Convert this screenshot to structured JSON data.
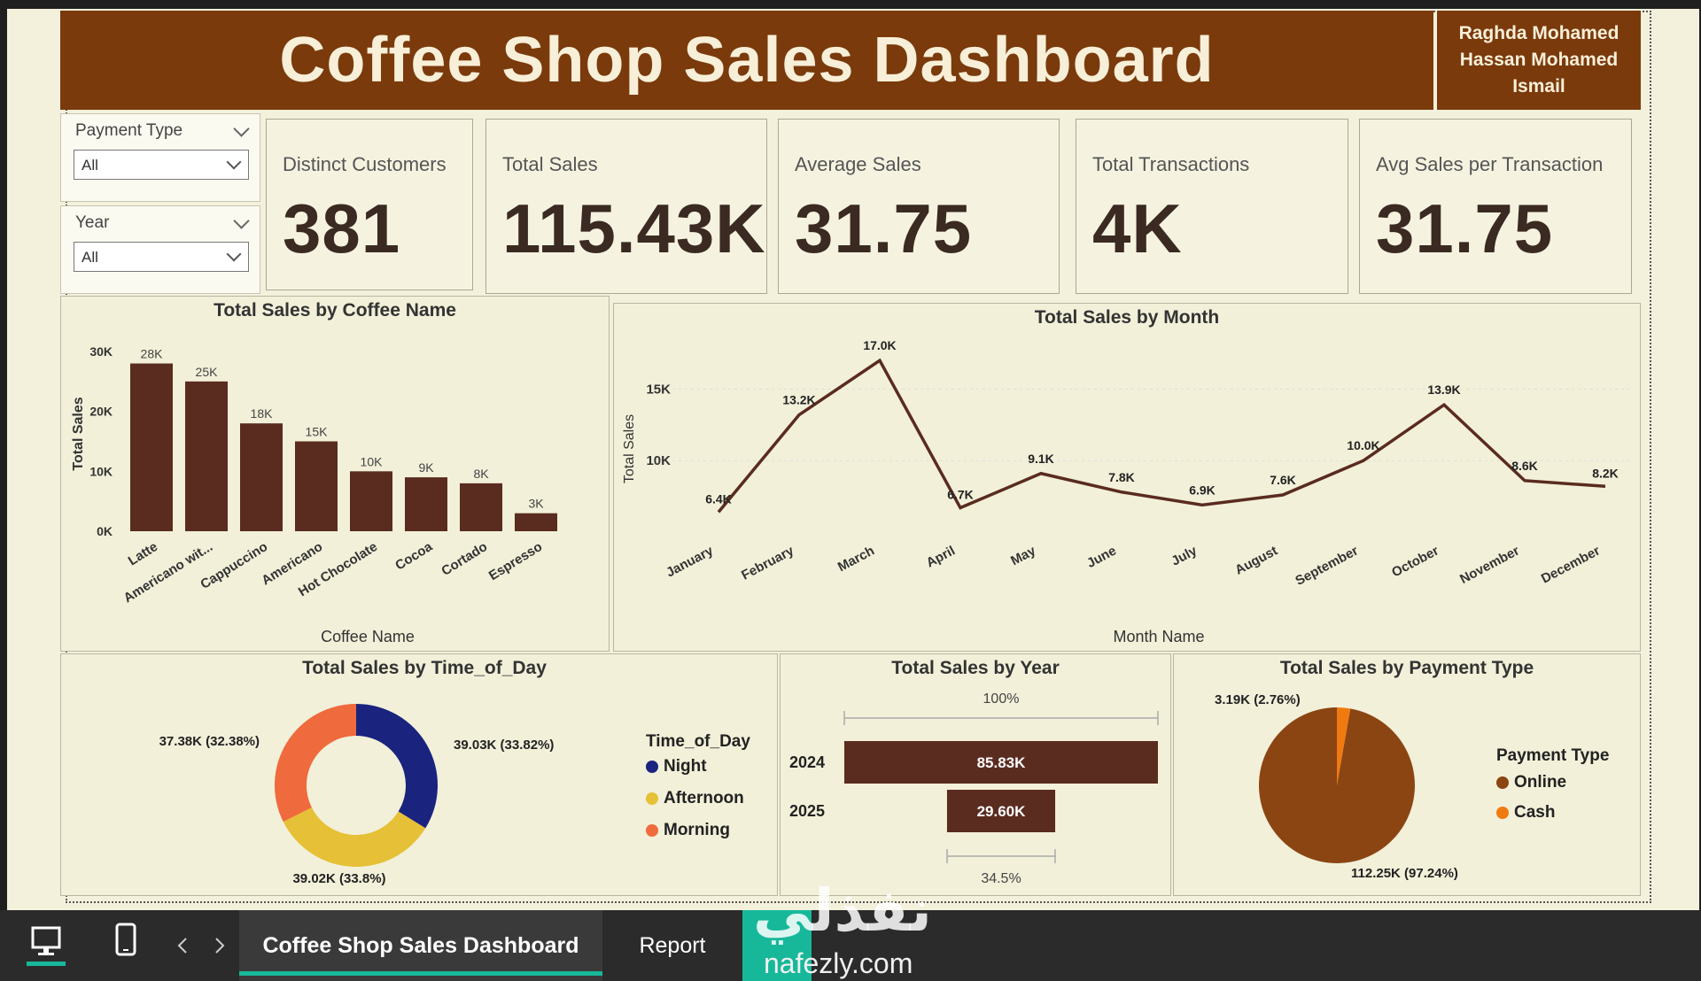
{
  "header": {
    "title": "Coffee Shop Sales Dashboard",
    "author": "Raghda Mohamed\nHassan Mohamed\nIsmail"
  },
  "slicers": [
    {
      "title": "Payment Type",
      "value": "All"
    },
    {
      "title": "Year",
      "value": "All"
    }
  ],
  "kpis": [
    {
      "label": "Distinct Customers",
      "value": "381"
    },
    {
      "label": "Total Sales",
      "value": "115.43K"
    },
    {
      "label": "Average Sales",
      "value": "31.75"
    },
    {
      "label": "Total Transactions",
      "value": "4K"
    },
    {
      "label": "Avg Sales per Transaction",
      "value": "31.75"
    }
  ],
  "colors": {
    "header": "#7a3a0c",
    "bar": "#5a2b1f",
    "night": "#1a237e",
    "afternoon": "#e6c036",
    "morning": "#ef6a3c",
    "online": "#8b4513",
    "cash": "#f07a10"
  },
  "chart_data": [
    {
      "type": "bar",
      "title": "Total Sales by Coffee Name",
      "xlabel": "Coffee Name",
      "ylabel": "Total Sales",
      "categories": [
        "Latte",
        "Americano wit...",
        "Cappuccino",
        "Americano",
        "Hot Chocolate",
        "Cocoa",
        "Cortado",
        "Espresso"
      ],
      "values": [
        28,
        25,
        18,
        15,
        10,
        9,
        8,
        3
      ],
      "data_labels": [
        "28K",
        "25K",
        "18K",
        "15K",
        "10K",
        "9K",
        "8K",
        "3K"
      ],
      "yticks": [
        "0K",
        "10K",
        "20K",
        "30K"
      ],
      "ylim": [
        0,
        30
      ]
    },
    {
      "type": "line",
      "title": "Total Sales by Month",
      "xlabel": "Month Name",
      "ylabel": "Total Sales",
      "categories": [
        "January",
        "February",
        "March",
        "April",
        "May",
        "June",
        "July",
        "August",
        "September",
        "October",
        "November",
        "December"
      ],
      "values": [
        6.4,
        13.2,
        17.0,
        6.7,
        9.1,
        7.8,
        6.9,
        7.6,
        10.0,
        13.9,
        8.6,
        8.2
      ],
      "data_labels": [
        "6.4K",
        "13.2K",
        "17.0K",
        "6.7K",
        "9.1K",
        "7.8K",
        "6.9K",
        "7.6K",
        "10.0K",
        "13.9K",
        "8.6K",
        "8.2K"
      ],
      "yticks": [
        "10K",
        "15K"
      ],
      "ylim": [
        5,
        18
      ]
    },
    {
      "type": "pie",
      "title": "Total Sales by Time_of_Day",
      "legend_title": "Time_of_Day",
      "series": [
        {
          "name": "Night",
          "value": 39.03,
          "label": "39.03K (33.82%)"
        },
        {
          "name": "Afternoon",
          "value": 39.02,
          "label": "39.02K (33.8%)"
        },
        {
          "name": "Morning",
          "value": 37.38,
          "label": "37.38K (32.38%)"
        }
      ]
    },
    {
      "type": "bar",
      "title": "Total Sales by Year",
      "categories": [
        "2024",
        "2025"
      ],
      "values": [
        85.83,
        29.6
      ],
      "data_labels": [
        "85.83K",
        "29.60K"
      ],
      "top_label": "100%",
      "bottom_label": "34.5%"
    },
    {
      "type": "pie",
      "title": "Total Sales by Payment Type",
      "legend_title": "Payment Type",
      "series": [
        {
          "name": "Online",
          "value": 112.25,
          "label": "112.25K (97.24%)"
        },
        {
          "name": "Cash",
          "value": 3.19,
          "label": "3.19K (2.76%)"
        }
      ]
    }
  ],
  "taskbar": {
    "tabs": [
      "Coffee Shop Sales Dashboard",
      "Report"
    ],
    "watermark": "nafezly.com",
    "watermark_ar": "نفذلي"
  }
}
